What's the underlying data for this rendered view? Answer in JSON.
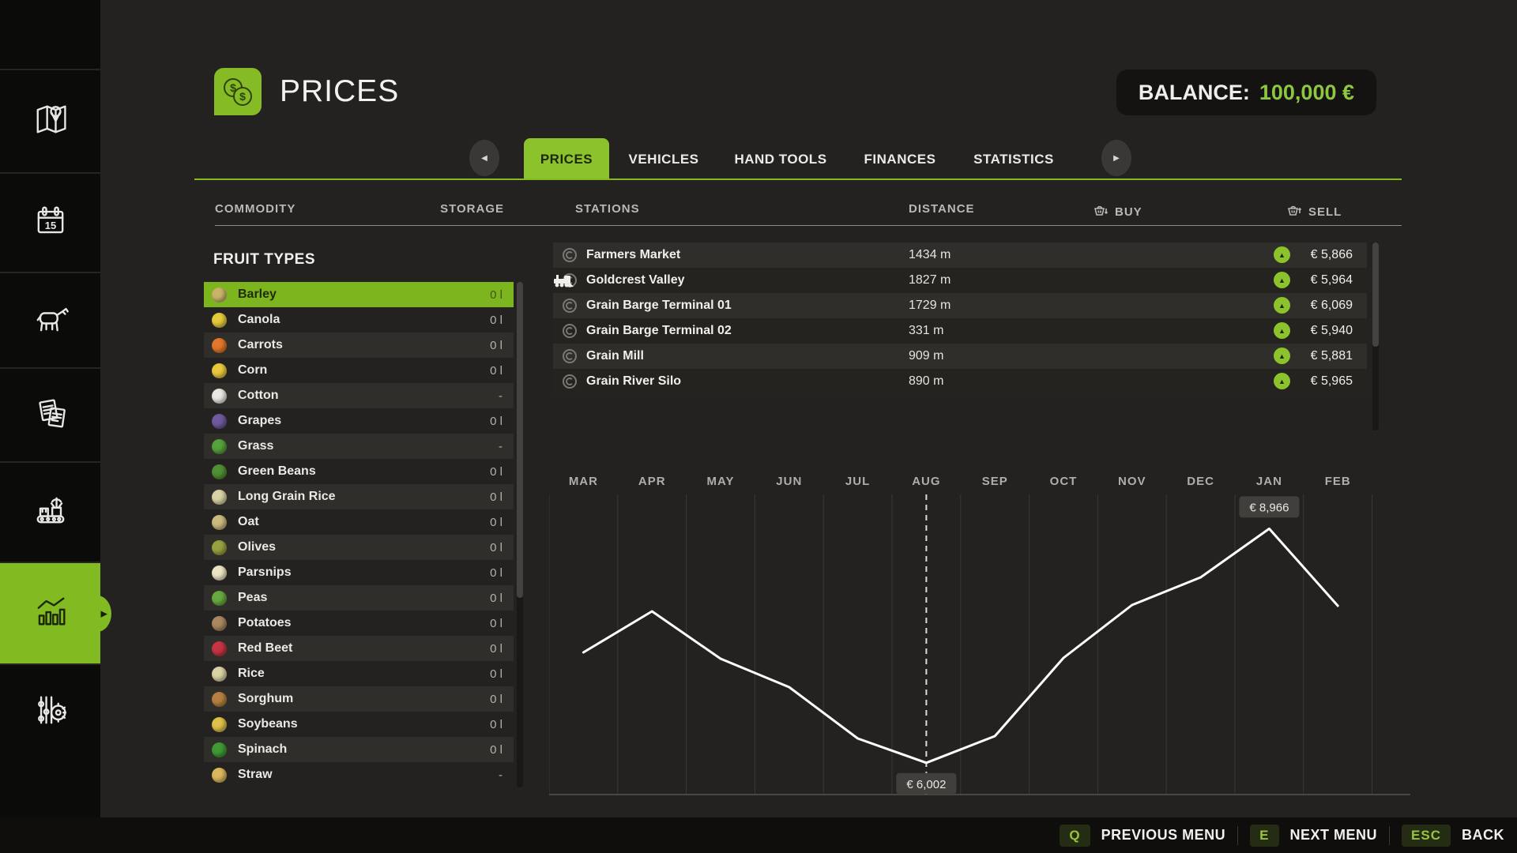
{
  "header": {
    "title": "PRICES",
    "balance_label": "BALANCE:",
    "balance_value": "100,000 €"
  },
  "sidebar": {
    "icons": [
      "map-icon",
      "calendar-icon",
      "animal-icon",
      "contracts-icon",
      "production-icon",
      "statistics-icon",
      "settings-icon"
    ],
    "active": "statistics"
  },
  "tabs": {
    "items": [
      "PRICES",
      "VEHICLES",
      "HAND TOOLS",
      "FINANCES",
      "STATISTICS"
    ],
    "active": "PRICES"
  },
  "columns": {
    "commodity": "COMMODITY",
    "storage": "STORAGE",
    "stations": "STATIONS",
    "distance": "DISTANCE",
    "buy": "BUY",
    "sell": "SELL"
  },
  "fruit_panel": {
    "heading": "FRUIT TYPES",
    "items": [
      {
        "name": "Barley",
        "storage": "0 l",
        "selected": true,
        "icon": "barley-icon",
        "icon_color": "#c9b36a"
      },
      {
        "name": "Canola",
        "storage": "0 l",
        "icon": "canola-icon",
        "icon_color": "#e3c93c"
      },
      {
        "name": "Carrots",
        "storage": "0 l",
        "icon": "carrots-icon",
        "icon_color": "#e2762a"
      },
      {
        "name": "Corn",
        "storage": "0 l",
        "icon": "corn-icon",
        "icon_color": "#e8c93e"
      },
      {
        "name": "Cotton",
        "storage": "-",
        "icon": "cotton-icon",
        "icon_color": "#e9e7e0"
      },
      {
        "name": "Grapes",
        "storage": "0 l",
        "icon": "grapes-icon",
        "icon_color": "#6f5a9e"
      },
      {
        "name": "Grass",
        "storage": "-",
        "icon": "grass-icon",
        "icon_color": "#57a23b"
      },
      {
        "name": "Green Beans",
        "storage": "0 l",
        "icon": "green-beans-icon",
        "icon_color": "#4f9032"
      },
      {
        "name": "Long Grain Rice",
        "storage": "0 l",
        "icon": "long-grain-rice-icon",
        "icon_color": "#d9d2a4"
      },
      {
        "name": "Oat",
        "storage": "0 l",
        "icon": "oat-icon",
        "icon_color": "#cbb97e"
      },
      {
        "name": "Olives",
        "storage": "0 l",
        "icon": "olives-icon",
        "icon_color": "#97a23f"
      },
      {
        "name": "Parsnips",
        "storage": "0 l",
        "icon": "parsnips-icon",
        "icon_color": "#ece4c4"
      },
      {
        "name": "Peas",
        "storage": "0 l",
        "icon": "peas-icon",
        "icon_color": "#67aa3e"
      },
      {
        "name": "Potatoes",
        "storage": "0 l",
        "icon": "potatoes-icon",
        "icon_color": "#a98761"
      },
      {
        "name": "Red Beet",
        "storage": "0 l",
        "icon": "red-beet-icon",
        "icon_color": "#c63443"
      },
      {
        "name": "Rice",
        "storage": "0 l",
        "icon": "rice-icon",
        "icon_color": "#d9d2a4"
      },
      {
        "name": "Sorghum",
        "storage": "0 l",
        "icon": "sorghum-icon",
        "icon_color": "#b5803f"
      },
      {
        "name": "Soybeans",
        "storage": "0 l",
        "icon": "soybeans-icon",
        "icon_color": "#ddc04a"
      },
      {
        "name": "Spinach",
        "storage": "0 l",
        "icon": "spinach-icon",
        "icon_color": "#3f9a33"
      },
      {
        "name": "Straw",
        "storage": "-",
        "icon": "straw-icon",
        "icon_color": "#d9b85e"
      }
    ]
  },
  "stations": [
    {
      "name": "Farmers Market",
      "distance": "1434 m",
      "sell": "€ 5,866",
      "trend": "up"
    },
    {
      "name": "Goldcrest Valley",
      "distance": "1827 m",
      "sell": "€ 5,964",
      "trend": "up",
      "train": true
    },
    {
      "name": "Grain Barge Terminal 01",
      "distance": "1729 m",
      "sell": "€ 6,069",
      "trend": "up"
    },
    {
      "name": "Grain Barge Terminal 02",
      "distance": "331 m",
      "sell": "€ 5,940",
      "trend": "up"
    },
    {
      "name": "Grain Mill",
      "distance": "909 m",
      "sell": "€ 5,881",
      "trend": "up"
    },
    {
      "name": "Grain River Silo",
      "distance": "890 m",
      "sell": "€ 5,965",
      "trend": "up"
    }
  ],
  "chart_data": {
    "type": "line",
    "title": "Barley price over last 12 months",
    "categories": [
      "MAR",
      "APR",
      "MAY",
      "JUN",
      "JUL",
      "AUG",
      "SEP",
      "OCT",
      "NOV",
      "DEC",
      "JAN",
      "FEB"
    ],
    "values": [
      7400,
      7920,
      7320,
      6960,
      6310,
      6002,
      6340,
      7330,
      8000,
      8350,
      8966,
      7990
    ],
    "ylim": [
      5600,
      9400
    ],
    "grid": true,
    "current_index": 5,
    "current_value_label": "€ 6,002",
    "peak_index": 10,
    "peak_value_label": "€ 8,966",
    "line_color": "#ffffff"
  },
  "footer": {
    "items": [
      {
        "key": "Q",
        "label": "PREVIOUS MENU"
      },
      {
        "key": "E",
        "label": "NEXT MENU"
      },
      {
        "key": "ESC",
        "label": "BACK"
      }
    ]
  },
  "colors": {
    "accent": "#82ba22",
    "accent_bright": "#8dc63f",
    "background": "#242220",
    "sidebar": "#0b0b0a",
    "row_light": "#302e2b",
    "row_dark": "#252320"
  }
}
